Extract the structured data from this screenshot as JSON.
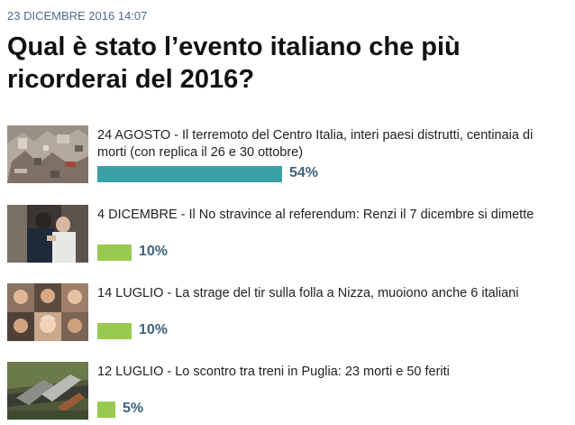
{
  "header": {
    "date": "23 DICEMBRE 2016 14:07",
    "title": "Qual è stato l’evento italiano che più ricorderai del 2016?"
  },
  "colors": {
    "leading_bar": "#3aa0a8",
    "other_bar": "#9ac94f",
    "percent_text": "#3d6380",
    "date_text": "#4f6d8c"
  },
  "poll": {
    "options": [
      {
        "text": "24 AGOSTO - Il terremoto del Centro Italia, interi paesi distrutti, centinaia di morti (con replica il 26 e 30 ottobre)",
        "percent": 54,
        "percent_label": "54%",
        "thumb_icon": "earthquake-rubble-photo"
      },
      {
        "text": "4 DICEMBRE - Il No stravince al referendum: Renzi il 7 dicembre si dimette",
        "percent": 10,
        "percent_label": "10%",
        "thumb_icon": "renzi-couple-photo"
      },
      {
        "text": "14 LUGLIO - La strage del tir sulla folla a Nizza, muoiono anche 6 italiani",
        "percent": 10,
        "percent_label": "10%",
        "thumb_icon": "victims-faces-collage-photo"
      },
      {
        "text": "12 LUGLIO - Lo scontro tra treni in Puglia: 23 morti e 50 feriti",
        "percent": 5,
        "percent_label": "5%",
        "thumb_icon": "train-crash-photo"
      }
    ]
  }
}
